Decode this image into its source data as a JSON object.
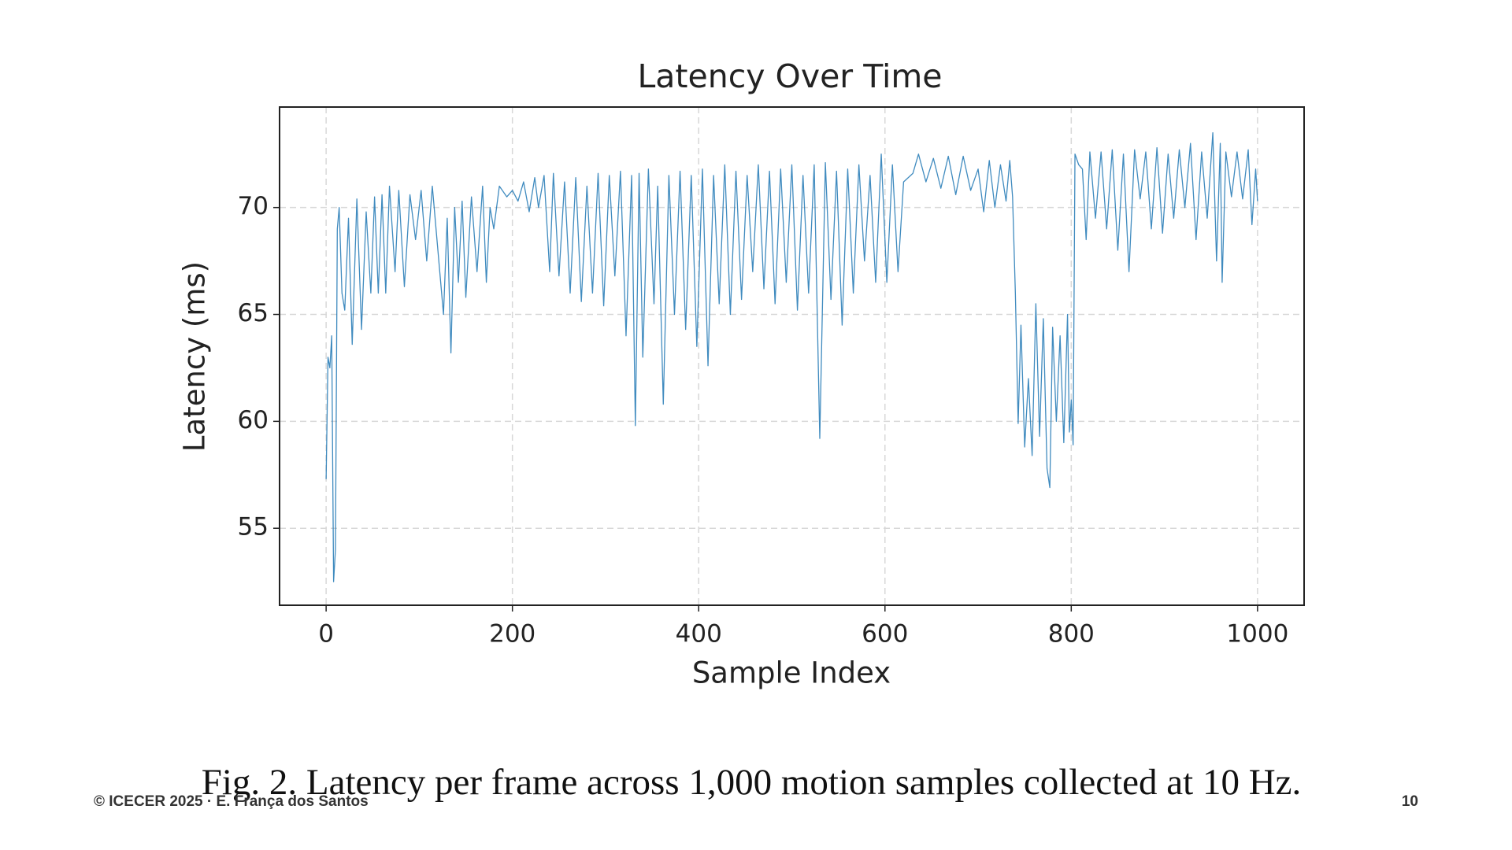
{
  "chart_data": {
    "type": "line",
    "title": "Latency Over Time",
    "xlabel": "Sample Index",
    "ylabel": "Latency (ms)",
    "xlim": [
      -50,
      1050
    ],
    "ylim": [
      51.4,
      74.7
    ],
    "xticks": [
      0,
      200,
      400,
      600,
      800,
      1000
    ],
    "yticks": [
      55,
      60,
      65,
      70
    ],
    "grid": true,
    "x": [
      0,
      2,
      4,
      6,
      8,
      10,
      12,
      14,
      17,
      20,
      24,
      28,
      33,
      38,
      43,
      48,
      52,
      56,
      60,
      64,
      68,
      74,
      78,
      84,
      90,
      96,
      102,
      108,
      114,
      120,
      126,
      130,
      134,
      138,
      142,
      146,
      150,
      156,
      162,
      168,
      172,
      176,
      180,
      186,
      194,
      200,
      206,
      212,
      218,
      224,
      228,
      234,
      240,
      244,
      250,
      256,
      262,
      268,
      274,
      280,
      286,
      292,
      298,
      304,
      310,
      316,
      322,
      328,
      332,
      336,
      340,
      346,
      352,
      356,
      362,
      368,
      374,
      380,
      386,
      392,
      398,
      404,
      410,
      416,
      422,
      428,
      434,
      440,
      446,
      452,
      458,
      464,
      470,
      476,
      482,
      488,
      494,
      500,
      506,
      512,
      518,
      524,
      530,
      536,
      542,
      548,
      554,
      560,
      566,
      572,
      578,
      584,
      590,
      596,
      602,
      608,
      614,
      620,
      630,
      636,
      644,
      652,
      660,
      668,
      676,
      684,
      692,
      700,
      706,
      712,
      718,
      724,
      730,
      734,
      737,
      740,
      743,
      746,
      750,
      754,
      758,
      762,
      766,
      770,
      774,
      777,
      780,
      784,
      788,
      792,
      796,
      798,
      800,
      802,
      804,
      808,
      812,
      816,
      820,
      826,
      832,
      838,
      844,
      850,
      856,
      862,
      868,
      874,
      880,
      886,
      892,
      898,
      904,
      910,
      916,
      922,
      928,
      934,
      940,
      946,
      952,
      956,
      960,
      962,
      966,
      972,
      978,
      984,
      990,
      994,
      998,
      1000
    ],
    "series": [
      {
        "name": "Latency",
        "color": "#1f77b4",
        "values": [
          57.3,
          63,
          62.5,
          64,
          52.5,
          54,
          69,
          70,
          66,
          65.2,
          69.5,
          63.6,
          70.4,
          64.3,
          69.8,
          66,
          70.5,
          66,
          70.6,
          66,
          71,
          67,
          70.8,
          66.3,
          70.6,
          68.5,
          70.8,
          67.5,
          71,
          68,
          65,
          69.5,
          63.2,
          70,
          66.5,
          70.3,
          65.8,
          70.5,
          67,
          71,
          66.5,
          70,
          69,
          71,
          70.5,
          70.8,
          70.3,
          71.2,
          69.8,
          71.4,
          70,
          71.5,
          67,
          71.6,
          66.8,
          71.2,
          66,
          71.4,
          65.6,
          71,
          66,
          71.6,
          65.4,
          71.5,
          66.8,
          71.7,
          64,
          71.5,
          59.8,
          71.6,
          63,
          71.8,
          65.5,
          71,
          60.8,
          71.5,
          65,
          71.7,
          64.3,
          71.5,
          63.5,
          71.8,
          62.6,
          71.5,
          65.5,
          72,
          65,
          71.7,
          65.7,
          71.5,
          67,
          72,
          66.2,
          71.7,
          65.5,
          71.8,
          66.5,
          72,
          65.2,
          71.5,
          66,
          72,
          59.2,
          72.1,
          65.7,
          71.7,
          64.5,
          71.8,
          66,
          72,
          67.5,
          71.5,
          66.5,
          72.5,
          66.5,
          72,
          67,
          71.2,
          71.6,
          72.5,
          71.2,
          72.3,
          70.9,
          72.4,
          70.6,
          72.4,
          70.8,
          71.8,
          69.8,
          72.2,
          70,
          72,
          70.3,
          72.2,
          70.5,
          66,
          59.9,
          64.5,
          58.8,
          62,
          58.4,
          65.5,
          59.3,
          64.8,
          57.8,
          56.9,
          64.4,
          60,
          64,
          59,
          65,
          59.5,
          61,
          58.9,
          72.5,
          72,
          71.8,
          68.5,
          72.6,
          69.5,
          72.6,
          69,
          72.7,
          68,
          72.5,
          67,
          72.7,
          70.4,
          72.6,
          69,
          72.8,
          68.8,
          72.5,
          69.5,
          72.7,
          70,
          73,
          68.5,
          72.6,
          69.5,
          73.5,
          67.5,
          73,
          66.5,
          72.6,
          70.5,
          72.6,
          70.4,
          72.7,
          69.2,
          71.8,
          70.3
        ]
      }
    ]
  },
  "caption": "Fig. 2.  Latency per frame across 1,000 motion samples collected at 10 Hz.",
  "footer": {
    "left": "© ICECER 2025 · E. França dos Santos",
    "page": "10"
  }
}
